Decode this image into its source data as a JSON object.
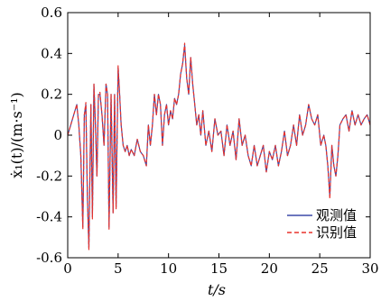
{
  "chart_data": {
    "type": "line",
    "xlabel": "t/s",
    "ylabel": "ẋ₁(t)/(m·s⁻¹)",
    "xlim": [
      0,
      30
    ],
    "ylim": [
      -0.6,
      0.6
    ],
    "x_ticks": [
      "0",
      "5",
      "10",
      "15",
      "20",
      "25",
      "30"
    ],
    "y_ticks": [
      "0.6",
      "0.4",
      "0.2",
      "0",
      "-0.2",
      "-0.4",
      "-0.6"
    ],
    "legend_position": "bottom-right",
    "series": [
      {
        "name": "观测值",
        "color": "#3d4aa8",
        "style": "solid",
        "x": [
          0,
          0.3,
          0.6,
          0.9,
          1.1,
          1.3,
          1.5,
          1.65,
          1.8,
          1.95,
          2.1,
          2.3,
          2.45,
          2.6,
          2.75,
          2.9,
          3.05,
          3.2,
          3.4,
          3.6,
          3.8,
          3.95,
          4.1,
          4.3,
          4.5,
          4.65,
          4.8,
          5.0,
          5.15,
          5.3,
          5.5,
          5.7,
          5.9,
          6.1,
          6.3,
          6.6,
          6.9,
          7.2,
          7.5,
          7.8,
          8.0,
          8.2,
          8.4,
          8.6,
          8.8,
          9.0,
          9.2,
          9.4,
          9.6,
          9.8,
          10.0,
          10.2,
          10.4,
          10.6,
          10.8,
          11.0,
          11.2,
          11.4,
          11.6,
          11.8,
          12.0,
          12.2,
          12.4,
          12.6,
          12.8,
          13.0,
          13.2,
          13.4,
          13.7,
          14.0,
          14.3,
          14.6,
          14.9,
          15.2,
          15.5,
          15.8,
          16.1,
          16.4,
          16.7,
          17.0,
          17.3,
          17.6,
          17.9,
          18.2,
          18.5,
          18.8,
          19.1,
          19.4,
          19.7,
          20.0,
          20.3,
          20.6,
          20.9,
          21.2,
          21.5,
          21.8,
          22.1,
          22.4,
          22.7,
          23.0,
          23.3,
          23.6,
          23.9,
          24.2,
          24.5,
          24.8,
          25.1,
          25.4,
          25.6,
          25.8,
          26.0,
          26.2,
          26.4,
          26.6,
          26.8,
          27.0,
          27.3,
          27.6,
          27.9,
          28.2,
          28.5,
          28.8,
          29.1,
          29.4,
          29.7,
          30.0
        ],
        "y": [
          0.0,
          0.05,
          0.1,
          0.15,
          0.05,
          -0.1,
          -0.45,
          0.1,
          0.15,
          -0.3,
          -0.55,
          0.15,
          -0.4,
          0.25,
          0.05,
          -0.2,
          0.2,
          0.2,
          0.1,
          -0.05,
          0.25,
          0.2,
          -0.45,
          0.2,
          -0.38,
          0.2,
          -0.35,
          0.33,
          0.2,
          0.05,
          -0.05,
          -0.08,
          -0.05,
          -0.1,
          -0.07,
          -0.1,
          -0.02,
          -0.08,
          -0.1,
          -0.15,
          0.05,
          -0.05,
          0.05,
          0.2,
          0.1,
          0.2,
          0.15,
          -0.05,
          0.1,
          0.15,
          0.05,
          0.12,
          0.08,
          0.18,
          0.15,
          0.2,
          0.3,
          0.35,
          0.44,
          0.28,
          0.2,
          0.38,
          0.25,
          0.15,
          0.05,
          0.1,
          0.0,
          0.12,
          -0.05,
          0.02,
          -0.08,
          0.08,
          0.0,
          0.02,
          -0.1,
          0.05,
          -0.05,
          0.02,
          -0.12,
          0.08,
          -0.05,
          0.0,
          -0.1,
          -0.15,
          -0.05,
          -0.15,
          -0.1,
          -0.05,
          -0.18,
          -0.08,
          -0.12,
          -0.05,
          -0.15,
          -0.08,
          0.02,
          -0.1,
          -0.05,
          0.05,
          -0.05,
          0.1,
          0.0,
          0.05,
          0.15,
          0.08,
          0.05,
          0.1,
          -0.05,
          0.0,
          -0.05,
          -0.15,
          -0.3,
          -0.05,
          -0.15,
          -0.2,
          -0.1,
          0.05,
          0.08,
          0.1,
          0.02,
          0.12,
          0.05,
          0.1,
          0.05,
          0.08,
          0.1,
          0.05
        ]
      },
      {
        "name": "识别值",
        "color": "#e8322b",
        "style": "dashed",
        "x": [
          0,
          0.3,
          0.6,
          0.9,
          1.1,
          1.3,
          1.5,
          1.65,
          1.8,
          1.95,
          2.1,
          2.3,
          2.45,
          2.6,
          2.75,
          2.9,
          3.05,
          3.2,
          3.4,
          3.6,
          3.8,
          3.95,
          4.1,
          4.3,
          4.5,
          4.65,
          4.8,
          5.0,
          5.15,
          5.3,
          5.5,
          5.7,
          5.9,
          6.1,
          6.3,
          6.6,
          6.9,
          7.2,
          7.5,
          7.8,
          8.0,
          8.2,
          8.4,
          8.6,
          8.8,
          9.0,
          9.2,
          9.4,
          9.6,
          9.8,
          10.0,
          10.2,
          10.4,
          10.6,
          10.8,
          11.0,
          11.2,
          11.4,
          11.6,
          11.8,
          12.0,
          12.2,
          12.4,
          12.6,
          12.8,
          13.0,
          13.2,
          13.4,
          13.7,
          14.0,
          14.3,
          14.6,
          14.9,
          15.2,
          15.5,
          15.8,
          16.1,
          16.4,
          16.7,
          17.0,
          17.3,
          17.6,
          17.9,
          18.2,
          18.5,
          18.8,
          19.1,
          19.4,
          19.7,
          20.0,
          20.3,
          20.6,
          20.9,
          21.2,
          21.5,
          21.8,
          22.1,
          22.4,
          22.7,
          23.0,
          23.3,
          23.6,
          23.9,
          24.2,
          24.5,
          24.8,
          25.1,
          25.4,
          25.6,
          25.8,
          26.0,
          26.2,
          26.4,
          26.6,
          26.8,
          27.0,
          27.3,
          27.6,
          27.9,
          28.2,
          28.5,
          28.8,
          29.1,
          29.4,
          29.7,
          30.0
        ],
        "y": [
          0.0,
          0.05,
          0.1,
          0.15,
          0.05,
          -0.1,
          -0.46,
          0.1,
          0.16,
          -0.3,
          -0.56,
          0.15,
          -0.41,
          0.25,
          0.05,
          -0.2,
          0.2,
          0.21,
          0.1,
          -0.05,
          0.25,
          0.2,
          -0.46,
          0.2,
          -0.38,
          0.2,
          -0.36,
          0.34,
          0.2,
          0.05,
          -0.05,
          -0.08,
          -0.05,
          -0.1,
          -0.07,
          -0.1,
          -0.02,
          -0.08,
          -0.1,
          -0.15,
          0.05,
          -0.05,
          0.05,
          0.2,
          0.1,
          0.2,
          0.15,
          -0.05,
          0.1,
          0.15,
          0.05,
          0.12,
          0.08,
          0.18,
          0.15,
          0.2,
          0.3,
          0.35,
          0.45,
          0.28,
          0.2,
          0.38,
          0.25,
          0.15,
          0.05,
          0.1,
          0.0,
          0.12,
          -0.05,
          0.02,
          -0.08,
          0.08,
          0.0,
          0.02,
          -0.1,
          0.05,
          -0.05,
          0.02,
          -0.12,
          0.08,
          -0.05,
          0.0,
          -0.1,
          -0.15,
          -0.05,
          -0.15,
          -0.1,
          -0.05,
          -0.18,
          -0.08,
          -0.12,
          -0.05,
          -0.15,
          -0.08,
          0.02,
          -0.1,
          -0.05,
          0.05,
          -0.05,
          0.1,
          0.0,
          0.05,
          0.15,
          0.08,
          0.05,
          0.1,
          -0.05,
          0.0,
          -0.05,
          -0.15,
          -0.31,
          -0.05,
          -0.15,
          -0.2,
          -0.1,
          0.05,
          0.08,
          0.1,
          0.02,
          0.12,
          0.05,
          0.1,
          0.05,
          0.08,
          0.1,
          0.05
        ]
      }
    ]
  }
}
